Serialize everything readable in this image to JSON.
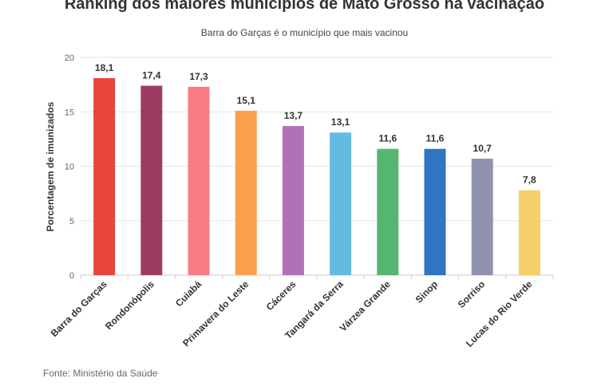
{
  "header": {
    "title": "Ranking dos maiores municípios de Mato Grosso na vacinação",
    "subtitle": "Barra do Garças é o município que mais vacinou"
  },
  "footer": {
    "source": "Fonte: Ministério da Saúde"
  },
  "chart_data": {
    "type": "bar",
    "title": "Ranking dos maiores municípios de Mato Grosso na vacinação",
    "subtitle": "Barra do Garças é o município que mais vacinou",
    "xlabel": "",
    "ylabel": "Porcentagem de imunizados",
    "ylim": [
      0,
      20
    ],
    "yticks": [
      0,
      5,
      10,
      15,
      20
    ],
    "grid": true,
    "categories": [
      "Barra do Garças",
      "Rondonópolis",
      "Cuiabá",
      "Primavera do Leste",
      "Cáceres",
      "Tangará da Serra",
      "Várzea Grande",
      "Sinop",
      "Sorriso",
      "Lucas do Rio Verde"
    ],
    "values": [
      18.1,
      17.4,
      17.3,
      15.1,
      13.7,
      13.1,
      11.6,
      11.6,
      10.7,
      7.8
    ],
    "value_labels": [
      "18,1",
      "17,4",
      "17,3",
      "15,1",
      "13,7",
      "13,1",
      "11,6",
      "11,6",
      "10,7",
      "7,8"
    ],
    "colors": [
      "#e8453c",
      "#9e3b63",
      "#f97b86",
      "#fba04d",
      "#b271b7",
      "#63bbe0",
      "#55b670",
      "#3174c2",
      "#9093b0",
      "#f7cf6a"
    ]
  }
}
